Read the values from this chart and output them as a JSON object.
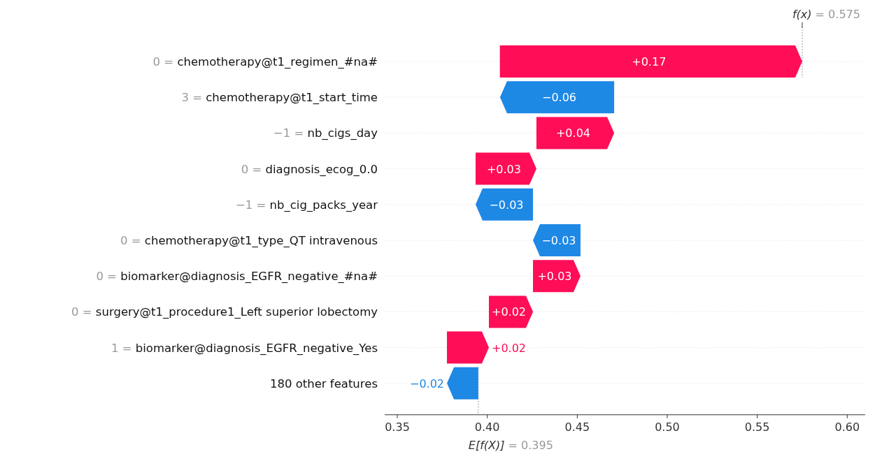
{
  "chart_data": {
    "type": "bar",
    "orientation": "horizontal",
    "categories": [
      "0 = chemotherapy@t1_regimen_#na#",
      "3 = chemotherapy@t1_start_time",
      "−1 = nb_cigs_day",
      "0 = diagnosis_ecog_0.0",
      "−1 = nb_cig_packs_year",
      "0 = chemotherapy@t1_type_QT intravenous",
      "0 = biomarker@diagnosis_EGFR_negative_#na#",
      "0 = surgery@t1_procedure1_Left superior lobectomy",
      "1 = biomarker@diagnosis_EGFR_negative_Yes",
      "180 other features"
    ],
    "base": [
      0.407,
      0.4705,
      0.4273,
      0.3935,
      0.4254,
      0.4518,
      0.4254,
      0.4009,
      0.3776,
      0.395
    ],
    "values": [
      0.168,
      -0.0634,
      0.0432,
      0.0338,
      -0.0319,
      -0.0264,
      0.0264,
      0.0245,
      0.0233,
      -0.0174
    ],
    "colors": [
      "#ff0d57",
      "#1e88e5",
      "#ff0d57",
      "#ff0d57",
      "#1e88e5",
      "#1e88e5",
      "#ff0d57",
      "#ff0d57",
      "#ff0d57",
      "#1e88e5"
    ],
    "value_labels": [
      "+0.17",
      "−0.06",
      "+0.04",
      "+0.03",
      "−0.03",
      "−0.03",
      "+0.03",
      "+0.02",
      "+0.02",
      "−0.02"
    ],
    "xlim": [
      0.343,
      0.61
    ],
    "xticks": [
      0.35,
      {
        "value": 0.4,
        "label": "0.40"
      },
      0.45,
      {
        "value": 0.5,
        "label": "0.50"
      },
      0.55,
      {
        "value": 0.6,
        "label": "0.60"
      }
    ],
    "ref_lines": [
      {
        "axis": "x",
        "value": 0.575,
        "label": "f(x) = 0.575",
        "color": "#999999",
        "line_style": "dotted"
      },
      {
        "axis": "x",
        "value": 0.395,
        "label": "E[f(X)] = 0.395",
        "color": "#999999",
        "line_style": "dotted"
      }
    ],
    "grid": "y"
  }
}
